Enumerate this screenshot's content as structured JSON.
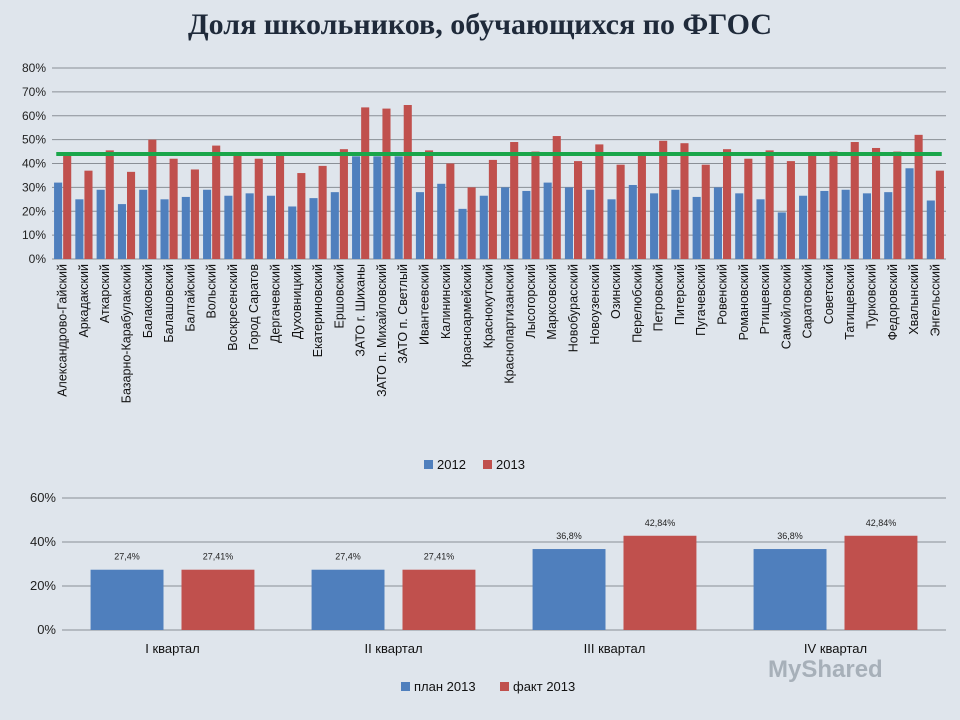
{
  "title": "Доля школьников, обучающихся по ФГОС",
  "watermark": "MyShared",
  "chart_data": [
    {
      "type": "bar",
      "ylim": [
        0,
        80
      ],
      "yticks": [
        "0%",
        "10%",
        "20%",
        "30%",
        "40%",
        "50%",
        "60%",
        "70%",
        "80%"
      ],
      "grid": true,
      "legend_placement": "bottom",
      "reference_line": {
        "value": 44,
        "color": "#1aa64a"
      },
      "categories": [
        "Александрово-Гайский",
        "Аркадакский",
        "Аткарский",
        "Базарно-Карабулакский",
        "Балаковский",
        "Балашовский",
        "Балтайский",
        "Вольский",
        "Воскресенский",
        "Город Саратов",
        "Дергачевский",
        "Духовницкий",
        "Екатериновский",
        "Ершовский",
        "ЗАТО г. Шиханы",
        "ЗАТО п. Михайловский",
        "ЗАТО п. Светлый",
        "Ивантеевский",
        "Калининский",
        "Красноармейский",
        "Краснокутский",
        "Краснопартизанский",
        "Лысогорский",
        "Марксовский",
        "Новобурасский",
        "Новоузенский",
        "Озинский",
        "Перелюбский",
        "Петровский",
        "Питерский",
        "Пугачевский",
        "Ровенский",
        "Романовский",
        "Ртищевский",
        "Самойловский",
        "Саратовский",
        "Советский",
        "Татищевский",
        "Турковский",
        "Федоровский",
        "Хвалынский",
        "Энгельсский"
      ],
      "series": [
        {
          "name": "2012",
          "color": "#4f7fbd",
          "values": [
            32,
            25,
            29,
            23,
            29,
            25,
            26,
            29,
            26.5,
            27.5,
            26.5,
            22,
            25.5,
            28,
            43,
            43,
            43,
            28,
            31.5,
            21,
            26.5,
            30,
            28.5,
            32,
            30,
            29,
            25,
            31,
            27.5,
            29,
            26,
            30,
            27.5,
            25,
            19.5,
            26.5,
            28.5,
            29,
            27.5,
            28,
            38,
            24.5
          ]
        },
        {
          "name": "2013",
          "color": "#c0504d",
          "values": [
            44.5,
            37,
            45.5,
            36.5,
            50,
            42,
            37.5,
            47.5,
            43.5,
            42,
            43.5,
            36,
            39,
            46,
            63.5,
            63,
            64.5,
            45.5,
            40,
            30,
            41.5,
            49,
            45,
            51.5,
            41,
            48,
            39.5,
            44.5,
            49.5,
            48.5,
            39.5,
            46,
            42,
            45.5,
            41,
            44.5,
            45,
            49,
            46.5,
            45,
            52,
            37
          ]
        }
      ]
    },
    {
      "type": "bar",
      "ylim": [
        0,
        60
      ],
      "yticks": [
        "0%",
        "20%",
        "40%",
        "60%"
      ],
      "grid": true,
      "legend_placement": "bottom",
      "categories": [
        "I квартал",
        "II квартал",
        "III квартал",
        "IV квартал"
      ],
      "series": [
        {
          "name": "план 2013",
          "color": "#4f7fbd",
          "values": [
            27.4,
            27.4,
            36.8,
            36.8
          ],
          "labels": [
            "27,4%",
            "27,4%",
            "36,8%",
            "36,8%"
          ]
        },
        {
          "name": "факт 2013",
          "color": "#c0504d",
          "values": [
            27.41,
            27.41,
            42.84,
            42.84
          ],
          "labels": [
            "27,41%",
            "27,41%",
            "42,84%",
            "42,84%"
          ]
        }
      ]
    }
  ]
}
